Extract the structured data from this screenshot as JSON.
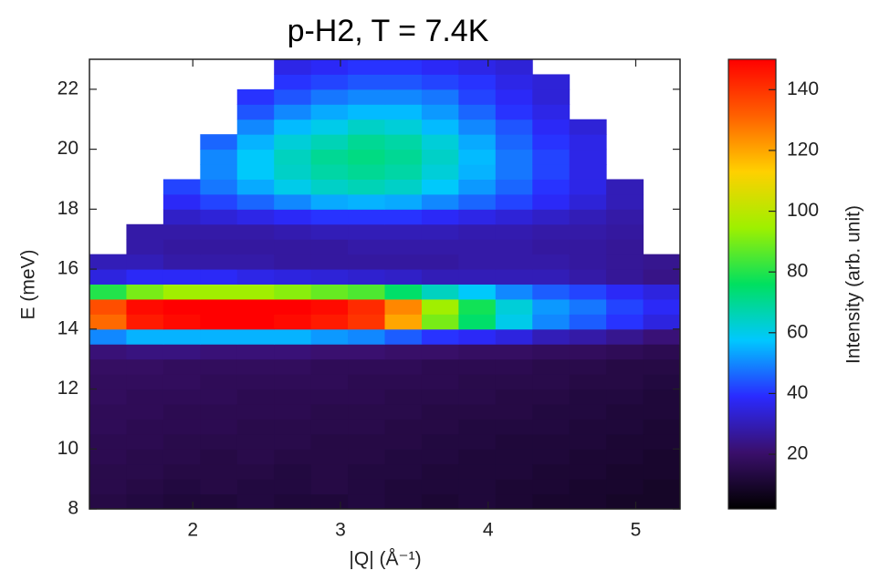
{
  "chart_data": {
    "type": "heatmap",
    "title": "p-H2, T = 7.4K",
    "xlabel": "|Q| (Å⁻¹)",
    "ylabel": "E (meV)",
    "colorbar_label": "Intensity (arb. unit)",
    "xlim": [
      1.3,
      5.3
    ],
    "xticks": [
      2,
      3,
      4,
      5
    ],
    "ylim": [
      8,
      23
    ],
    "yticks": [
      8,
      10,
      12,
      14,
      16,
      18,
      20,
      22
    ],
    "zlim": [
      2,
      150
    ],
    "zticks": [
      20,
      40,
      60,
      80,
      100,
      120,
      140
    ],
    "colormap": [
      "#000000",
      "#3a0f6b",
      "#2a2aff",
      "#00c8ff",
      "#00e060",
      "#9ef000",
      "#ffd000",
      "#ff6000",
      "#ff0000"
    ],
    "x_bins": [
      1.3,
      1.55,
      1.8,
      2.05,
      2.3,
      2.55,
      2.8,
      3.05,
      3.3,
      3.55,
      3.8,
      4.05,
      4.3,
      4.55,
      4.8,
      5.05,
      5.3
    ],
    "y_bins": [
      8,
      8.5,
      9,
      9.5,
      10,
      10.5,
      11,
      11.5,
      12,
      12.5,
      13,
      13.5,
      14,
      14.5,
      15,
      15.5,
      16,
      16.5,
      17,
      17.5,
      18,
      18.5,
      19,
      19.5,
      20,
      20.5,
      21,
      21.5,
      22,
      22.5,
      23
    ],
    "z": [
      [
        14,
        13,
        12,
        12,
        13,
        12,
        12,
        13,
        12,
        11,
        12,
        11,
        10,
        10,
        9,
        9
      ],
      [
        15,
        14,
        13,
        14,
        13,
        13,
        14,
        13,
        12,
        12,
        12,
        11,
        11,
        10,
        10,
        9
      ],
      [
        15,
        15,
        14,
        14,
        14,
        13,
        14,
        13,
        13,
        12,
        12,
        12,
        11,
        11,
        10,
        10
      ],
      [
        16,
        15,
        15,
        14,
        15,
        14,
        14,
        14,
        13,
        13,
        12,
        12,
        12,
        11,
        11,
        10
      ],
      [
        16,
        16,
        15,
        15,
        15,
        15,
        14,
        14,
        14,
        13,
        13,
        12,
        12,
        12,
        11,
        11
      ],
      [
        17,
        16,
        16,
        16,
        15,
        15,
        15,
        15,
        14,
        14,
        13,
        13,
        13,
        12,
        12,
        11
      ],
      [
        17,
        17,
        16,
        16,
        16,
        16,
        15,
        15,
        15,
        14,
        14,
        14,
        13,
        13,
        12,
        12
      ],
      [
        18,
        17,
        17,
        17,
        16,
        16,
        16,
        16,
        15,
        15,
        15,
        14,
        14,
        13,
        13,
        12
      ],
      [
        18,
        18,
        18,
        17,
        17,
        17,
        17,
        16,
        16,
        16,
        15,
        15,
        15,
        14,
        14,
        13
      ],
      [
        19,
        19,
        18,
        18,
        18,
        18,
        17,
        17,
        17,
        16,
        16,
        16,
        15,
        15,
        14,
        14
      ],
      [
        22,
        23,
        23,
        22,
        22,
        22,
        21,
        21,
        20,
        20,
        19,
        19,
        18,
        18,
        17,
        16
      ],
      [
        50,
        55,
        55,
        55,
        55,
        55,
        52,
        50,
        45,
        40,
        38,
        35,
        30,
        28,
        25,
        22
      ],
      [
        130,
        145,
        148,
        150,
        150,
        148,
        145,
        140,
        120,
        90,
        75,
        60,
        50,
        45,
        40,
        35
      ],
      [
        135,
        148,
        150,
        150,
        150,
        150,
        148,
        142,
        125,
        95,
        78,
        62,
        52,
        48,
        42,
        38
      ],
      [
        80,
        90,
        95,
        95,
        95,
        92,
        88,
        85,
        75,
        65,
        58,
        50,
        45,
        42,
        38,
        35
      ],
      [
        35,
        38,
        38,
        38,
        36,
        35,
        34,
        33,
        32,
        30,
        30,
        30,
        30,
        28,
        26,
        24
      ],
      [
        30,
        30,
        28,
        28,
        28,
        27,
        27,
        27,
        27,
        27,
        28,
        28,
        28,
        27,
        26,
        25
      ],
      [
        null,
        28,
        27,
        27,
        27,
        27,
        27,
        28,
        28,
        28,
        28,
        28,
        27,
        27,
        26,
        null
      ],
      [
        null,
        28,
        28,
        28,
        28,
        29,
        30,
        30,
        30,
        30,
        29,
        29,
        28,
        28,
        27,
        null
      ],
      [
        null,
        null,
        32,
        34,
        36,
        38,
        40,
        40,
        40,
        38,
        36,
        34,
        32,
        30,
        28,
        null
      ],
      [
        null,
        null,
        38,
        42,
        46,
        50,
        54,
        55,
        54,
        50,
        46,
        42,
        38,
        34,
        30,
        null
      ],
      [
        null,
        null,
        42,
        48,
        54,
        60,
        64,
        66,
        64,
        58,
        52,
        46,
        40,
        36,
        30,
        null
      ],
      [
        null,
        null,
        null,
        50,
        58,
        64,
        68,
        70,
        68,
        62,
        55,
        48,
        42,
        36,
        null,
        null
      ],
      [
        null,
        null,
        null,
        50,
        58,
        65,
        70,
        72,
        70,
        64,
        56,
        48,
        42,
        36,
        null,
        null
      ],
      [
        null,
        null,
        null,
        46,
        55,
        62,
        66,
        70,
        68,
        62,
        54,
        46,
        40,
        36,
        null,
        null
      ],
      [
        null,
        null,
        null,
        null,
        50,
        56,
        60,
        64,
        62,
        56,
        50,
        44,
        38,
        34,
        null,
        null
      ],
      [
        null,
        null,
        null,
        null,
        44,
        50,
        54,
        56,
        56,
        52,
        46,
        40,
        36,
        null,
        null,
        null
      ],
      [
        null,
        null,
        null,
        null,
        40,
        44,
        48,
        50,
        50,
        48,
        42,
        38,
        34,
        null,
        null,
        null
      ],
      [
        null,
        null,
        null,
        null,
        null,
        40,
        42,
        44,
        44,
        42,
        40,
        36,
        34,
        null,
        null,
        null
      ],
      [
        null,
        null,
        null,
        null,
        null,
        36,
        38,
        40,
        40,
        38,
        36,
        34,
        null,
        null,
        null,
        null
      ]
    ]
  }
}
